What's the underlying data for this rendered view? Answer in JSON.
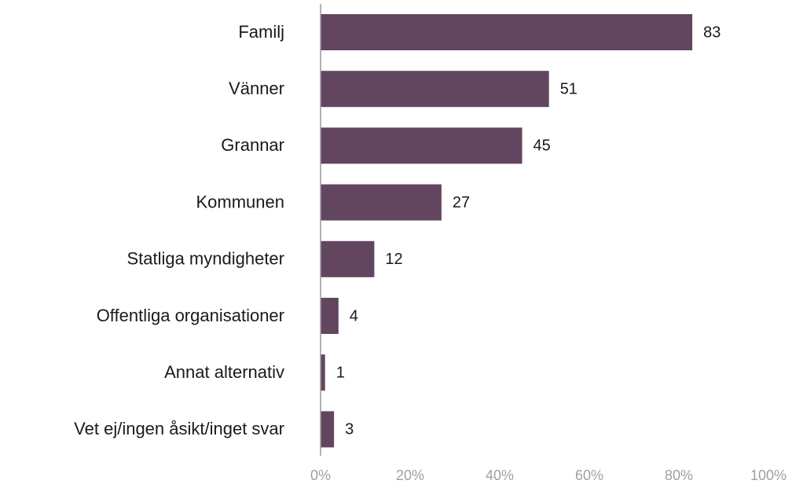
{
  "chart_data": {
    "type": "bar",
    "orientation": "horizontal",
    "categories": [
      "Familj",
      "Vänner",
      "Grannar",
      "Kommunen",
      "Statliga myndigheter",
      "Offentliga organisationer",
      "Annat alternativ",
      "Vet ej/ingen åsikt/inget svar"
    ],
    "values": [
      83,
      51,
      45,
      27,
      12,
      4,
      1,
      3
    ],
    "color": "#62465f",
    "xlim": [
      0,
      100
    ],
    "xticks": [
      {
        "value": 0,
        "label": "0%"
      },
      {
        "value": 20,
        "label": "20%"
      },
      {
        "value": 40,
        "label": "40%"
      },
      {
        "value": 60,
        "label": "60%"
      },
      {
        "value": 80,
        "label": "80%"
      },
      {
        "value": 100,
        "label": "100%"
      }
    ],
    "grid": false
  }
}
